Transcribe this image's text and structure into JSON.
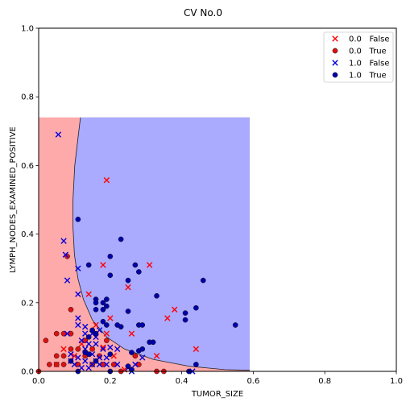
{
  "chart_data": {
    "type": "scatter",
    "title": "CV No.0",
    "xlabel": "TUMOR_SIZE",
    "ylabel": "LYMPH_NODES_EXAMINED_POSITIVE",
    "xlim": [
      0,
      1
    ],
    "ylim": [
      0,
      1
    ],
    "x_ticks": [
      "0.0",
      "0.2",
      "0.4",
      "0.6",
      "0.8",
      "1.0"
    ],
    "y_ticks": [
      "0.0",
      "0.2",
      "0.4",
      "0.6",
      "0.8",
      "1.0"
    ],
    "grid": false,
    "legend_position": "top-right",
    "decision_region": {
      "x_range": [
        0,
        0.59
      ],
      "y_range": [
        0,
        0.74
      ],
      "class_0_color": "#ffaaaa",
      "class_1_color": "#aaaaff",
      "boundary_points": [
        [
          0.117,
          0.74
        ],
        [
          0.11,
          0.68
        ],
        [
          0.101,
          0.6
        ],
        [
          0.096,
          0.5
        ],
        [
          0.096,
          0.42
        ],
        [
          0.1,
          0.34
        ],
        [
          0.11,
          0.27
        ],
        [
          0.125,
          0.21
        ],
        [
          0.15,
          0.15
        ],
        [
          0.19,
          0.1
        ],
        [
          0.24,
          0.065
        ],
        [
          0.32,
          0.035
        ],
        [
          0.42,
          0.015
        ],
        [
          0.52,
          0.005
        ],
        [
          0.59,
          0.003
        ]
      ]
    },
    "series": [
      {
        "name": "0.0   False",
        "marker": "x",
        "color": "#ff0000",
        "points": [
          [
            0.19,
            0.557
          ],
          [
            0.18,
            0.31
          ],
          [
            0.31,
            0.31
          ],
          [
            0.14,
            0.225
          ],
          [
            0.25,
            0.245
          ],
          [
            0.38,
            0.18
          ],
          [
            0.36,
            0.155
          ],
          [
            0.2,
            0.155
          ],
          [
            0.26,
            0.11
          ],
          [
            0.21,
            0.045
          ],
          [
            0.33,
            0.045
          ],
          [
            0.44,
            0.065
          ],
          [
            0.16,
            0.135
          ],
          [
            0.19,
            0.11
          ],
          [
            0.12,
            0.08
          ],
          [
            0.07,
            0.065
          ],
          [
            0.18,
            0.07
          ],
          [
            0.1,
            0.045
          ],
          [
            0.05,
            0.02
          ],
          [
            0.24,
            0.005
          ]
        ]
      },
      {
        "name": "0.0   True",
        "marker": "o",
        "color": "#dd1111",
        "points": [
          [
            0.02,
            0.09
          ],
          [
            0.05,
            0.11
          ],
          [
            0.07,
            0.11
          ],
          [
            0.09,
            0.11
          ],
          [
            0.08,
            0.335
          ],
          [
            0.09,
            0.18
          ],
          [
            0.05,
            0.045
          ],
          [
            0.07,
            0.045
          ],
          [
            0.09,
            0.065
          ],
          [
            0.11,
            0.065
          ],
          [
            0.13,
            0.045
          ],
          [
            0.15,
            0.065
          ],
          [
            0.17,
            0.045
          ],
          [
            0.03,
            0.02
          ],
          [
            0.05,
            0.02
          ],
          [
            0.07,
            0.02
          ],
          [
            0.11,
            0.02
          ],
          [
            0.15,
            0.02
          ],
          [
            0.18,
            0.02
          ],
          [
            0.21,
            0.02
          ],
          [
            0.27,
            0.045
          ],
          [
            0.28,
            0.02
          ],
          [
            0.33,
            0.0
          ],
          [
            0.35,
            0.0
          ],
          [
            0.0,
            0.0
          ],
          [
            0.13,
            0.09
          ],
          [
            0.19,
            0.09
          ],
          [
            0.23,
            0.0
          ]
        ]
      },
      {
        "name": "1.0   False",
        "marker": "x",
        "color": "#0000dd",
        "points": [
          [
            0.055,
            0.69
          ],
          [
            0.07,
            0.38
          ],
          [
            0.075,
            0.34
          ],
          [
            0.08,
            0.265
          ],
          [
            0.11,
            0.3
          ],
          [
            0.11,
            0.225
          ],
          [
            0.11,
            0.155
          ],
          [
            0.11,
            0.135
          ],
          [
            0.13,
            0.11
          ],
          [
            0.15,
            0.11
          ],
          [
            0.16,
            0.1
          ],
          [
            0.17,
            0.12
          ],
          [
            0.13,
            0.13
          ],
          [
            0.12,
            0.09
          ],
          [
            0.14,
            0.08
          ],
          [
            0.16,
            0.08
          ],
          [
            0.18,
            0.065
          ],
          [
            0.2,
            0.07
          ],
          [
            0.22,
            0.065
          ],
          [
            0.13,
            0.065
          ],
          [
            0.15,
            0.05
          ],
          [
            0.17,
            0.04
          ],
          [
            0.19,
            0.04
          ],
          [
            0.09,
            0.05
          ],
          [
            0.11,
            0.04
          ],
          [
            0.13,
            0.03
          ],
          [
            0.15,
            0.02
          ],
          [
            0.16,
            0.03
          ],
          [
            0.08,
            0.11
          ],
          [
            0.09,
            0.03
          ],
          [
            0.1,
            0.02
          ],
          [
            0.12,
            0.01
          ],
          [
            0.14,
            0.01
          ],
          [
            0.17,
            0.02
          ],
          [
            0.19,
            0.02
          ],
          [
            0.22,
            0.02
          ],
          [
            0.25,
            0.01
          ],
          [
            0.26,
            0.0
          ],
          [
            0.27,
            0.02
          ],
          [
            0.29,
            0.04
          ],
          [
            0.43,
            0.0
          ]
        ]
      },
      {
        "name": "1.0   True",
        "marker": "o",
        "color": "#0000aa",
        "points": [
          [
            0.11,
            0.443
          ],
          [
            0.23,
            0.385
          ],
          [
            0.14,
            0.31
          ],
          [
            0.2,
            0.335
          ],
          [
            0.27,
            0.31
          ],
          [
            0.28,
            0.29
          ],
          [
            0.2,
            0.28
          ],
          [
            0.25,
            0.265
          ],
          [
            0.46,
            0.265
          ],
          [
            0.33,
            0.22
          ],
          [
            0.16,
            0.21
          ],
          [
            0.18,
            0.2
          ],
          [
            0.19,
            0.21
          ],
          [
            0.16,
            0.2
          ],
          [
            0.19,
            0.19
          ],
          [
            0.16,
            0.18
          ],
          [
            0.18,
            0.18
          ],
          [
            0.25,
            0.175
          ],
          [
            0.41,
            0.17
          ],
          [
            0.44,
            0.185
          ],
          [
            0.41,
            0.15
          ],
          [
            0.55,
            0.135
          ],
          [
            0.18,
            0.145
          ],
          [
            0.22,
            0.135
          ],
          [
            0.23,
            0.13
          ],
          [
            0.28,
            0.135
          ],
          [
            0.29,
            0.135
          ],
          [
            0.19,
            0.135
          ],
          [
            0.15,
            0.12
          ],
          [
            0.16,
            0.11
          ],
          [
            0.14,
            0.1
          ],
          [
            0.31,
            0.085
          ],
          [
            0.32,
            0.085
          ],
          [
            0.29,
            0.065
          ],
          [
            0.28,
            0.06
          ],
          [
            0.26,
            0.055
          ],
          [
            0.2,
            0.05
          ],
          [
            0.14,
            0.05
          ],
          [
            0.13,
            0.055
          ],
          [
            0.09,
            0.03
          ],
          [
            0.16,
            0.03
          ],
          [
            0.11,
            0.0
          ],
          [
            0.44,
            0.02
          ],
          [
            0.2,
            0.0
          ],
          [
            0.25,
            0.015
          ],
          [
            0.26,
            0.005
          ],
          [
            0.42,
            0.0
          ]
        ]
      }
    ]
  }
}
